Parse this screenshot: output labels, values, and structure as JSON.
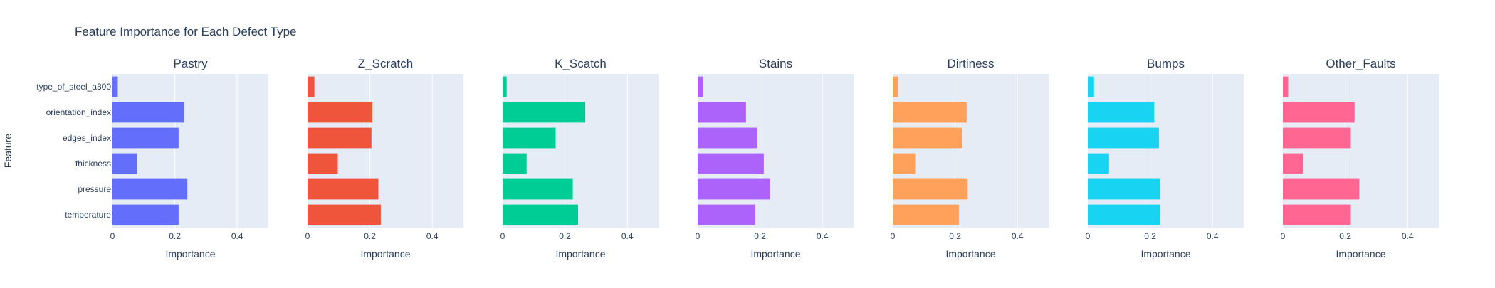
{
  "chart_data": {
    "type": "bar",
    "orientation": "horizontal",
    "title": "Feature Importance for Each Defect Type",
    "ylabel": "Feature",
    "xlabel": "Importance",
    "xlim": [
      0,
      0.5
    ],
    "xticks": [
      0,
      0.2,
      0.4
    ],
    "xtick_labels": [
      "0",
      "0.2",
      "0.4"
    ],
    "grid": true,
    "categories": [
      "type_of_steel_a300",
      "orientation_index",
      "edges_index",
      "thickness",
      "pressure",
      "temperature"
    ],
    "series": [
      {
        "name": "Pastry",
        "color": "#636efa",
        "values": [
          0.017,
          0.23,
          0.212,
          0.078,
          0.24,
          0.212
        ]
      },
      {
        "name": "Z_Scratch",
        "color": "#ef553b",
        "values": [
          0.022,
          0.208,
          0.205,
          0.097,
          0.227,
          0.235
        ]
      },
      {
        "name": "K_Scatch",
        "color": "#00cc96",
        "values": [
          0.013,
          0.265,
          0.17,
          0.077,
          0.225,
          0.242
        ]
      },
      {
        "name": "Stains",
        "color": "#ab63fa",
        "values": [
          0.017,
          0.155,
          0.19,
          0.212,
          0.233,
          0.185
        ]
      },
      {
        "name": "Dirtiness",
        "color": "#ffa15a",
        "values": [
          0.017,
          0.237,
          0.222,
          0.072,
          0.24,
          0.212
        ]
      },
      {
        "name": "Bumps",
        "color": "#19d3f3",
        "values": [
          0.02,
          0.213,
          0.228,
          0.068,
          0.233,
          0.233
        ]
      },
      {
        "name": "Other_Faults",
        "color": "#ff6692",
        "values": [
          0.017,
          0.23,
          0.218,
          0.065,
          0.245,
          0.218
        ]
      }
    ]
  }
}
